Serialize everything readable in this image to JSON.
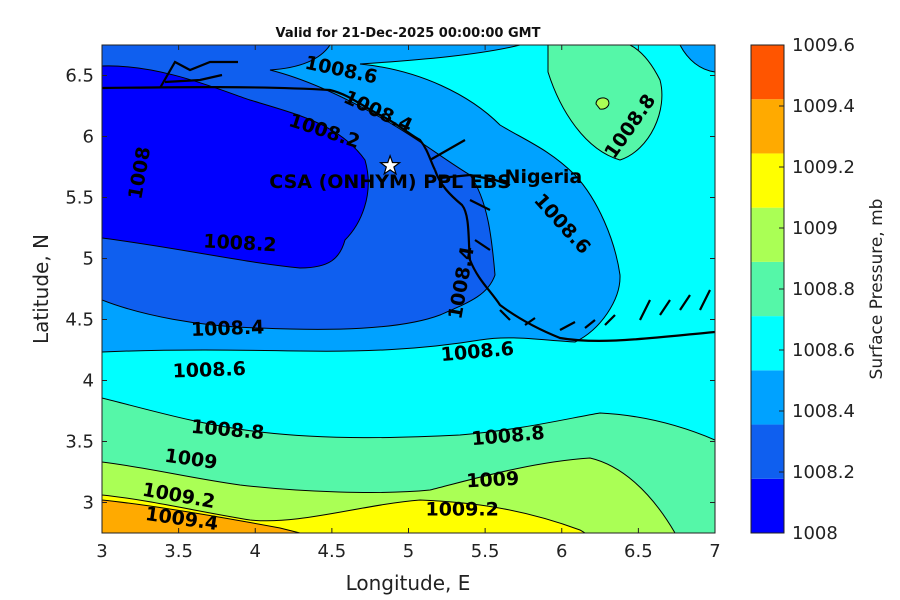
{
  "chart_data": {
    "type": "contour",
    "title": "Valid for 21-Dec-2025 00:00:00 GMT",
    "xlabel": "Longitude, E",
    "ylabel": "Latitude, N",
    "xlim": [
      3,
      7
    ],
    "ylim": [
      2.75,
      6.75
    ],
    "xticks": [
      "3",
      "3.5",
      "4",
      "4.5",
      "5",
      "5.5",
      "6",
      "6.5",
      "7"
    ],
    "yticks": [
      "3",
      "3.5",
      "4",
      "4.5",
      "5",
      "5.5",
      "6",
      "6.5"
    ],
    "colorbar": {
      "title": "Surface Pressure, mb",
      "levels": [
        1008,
        1008.2,
        1008.4,
        1008.6,
        1008.8,
        1009,
        1009.2,
        1009.4,
        1009.6
      ],
      "tick_labels": [
        "1008",
        "1008.2",
        "1008.4",
        "1008.6",
        "1008.8",
        "1009",
        "1009.2",
        "1009.4",
        "1009.6"
      ],
      "colors": [
        "#0000ff",
        "#0f5fef",
        "#00a2ff",
        "#00ffff",
        "#55f7a8",
        "#aaff55",
        "#ffff00",
        "#ffaa00",
        "#ff5500"
      ]
    },
    "contour_labels": [
      {
        "text": "1008.6",
        "x": 4.56,
        "y": 6.54
      },
      {
        "text": "1008.4",
        "x": 4.8,
        "y": 6.2
      },
      {
        "text": "1008.2",
        "x": 4.45,
        "y": 6.04
      },
      {
        "text": "1008",
        "x": 3.25,
        "y": 5.7
      },
      {
        "text": "1008.2",
        "x": 3.9,
        "y": 5.12
      },
      {
        "text": "1008.4",
        "x": 5.35,
        "y": 4.8
      },
      {
        "text": "1008.4",
        "x": 3.82,
        "y": 4.42
      },
      {
        "text": "1008.6",
        "x": 5.45,
        "y": 4.23
      },
      {
        "text": "1008.6",
        "x": 3.7,
        "y": 4.08
      },
      {
        "text": "1008.6",
        "x": 6.0,
        "y": 5.28
      },
      {
        "text": "1008.8",
        "x": 6.45,
        "y": 6.08
      },
      {
        "text": "1008.8",
        "x": 3.82,
        "y": 3.59
      },
      {
        "text": "1008.8",
        "x": 5.65,
        "y": 3.54
      },
      {
        "text": "1009",
        "x": 3.58,
        "y": 3.35
      },
      {
        "text": "1009",
        "x": 5.55,
        "y": 3.18
      },
      {
        "text": "1009.2",
        "x": 3.5,
        "y": 3.05
      },
      {
        "text": "1009.2",
        "x": 5.35,
        "y": 2.94
      },
      {
        "text": "1009.4",
        "x": 3.52,
        "y": 2.86
      }
    ],
    "annotations": [
      {
        "text": "CSA (ONHYM) PPL EBS",
        "x": 4.88,
        "y": 5.76,
        "marker": "star"
      },
      {
        "text": "Nigeria",
        "x": 5.88,
        "y": 5.62
      }
    ]
  }
}
